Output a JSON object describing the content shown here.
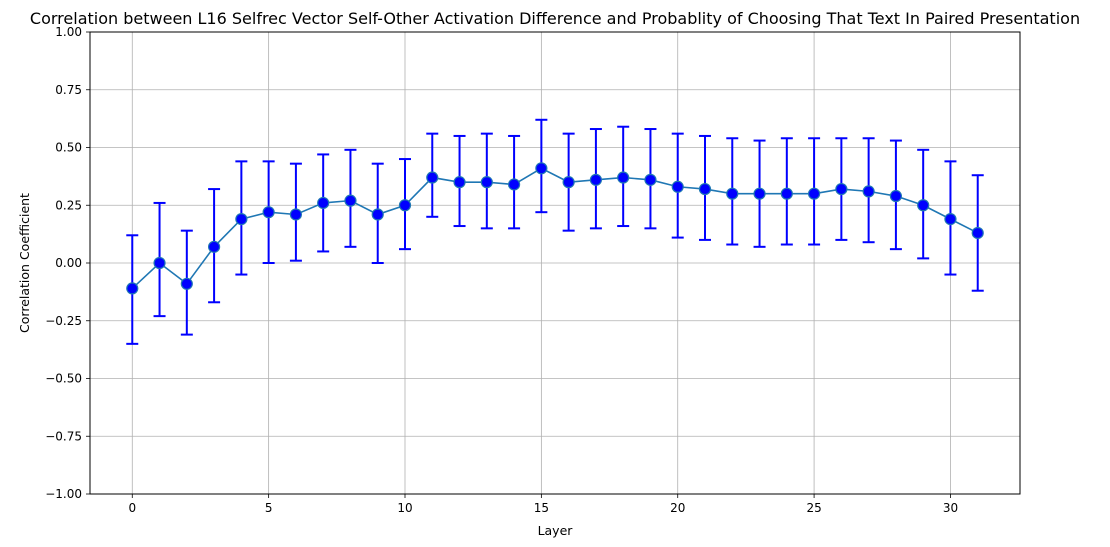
{
  "chart_data": {
    "type": "line",
    "title": "Correlation between L16 Selfrec Vector Self-Other Activation Difference and Probablity of Choosing That Text In Paired Presentation",
    "xlabel": "Layer",
    "ylabel": "Correlation Coefficient",
    "xlim": [
      -1.55,
      32.55
    ],
    "ylim": [
      -1.0,
      1.0
    ],
    "x_ticks": [
      0,
      5,
      10,
      15,
      20,
      25,
      30
    ],
    "y_ticks": [
      1.0,
      0.75,
      0.5,
      0.25,
      0.0,
      -0.25,
      -0.5,
      -0.75,
      -1.0
    ],
    "x_tick_labels": [
      "0",
      "5",
      "10",
      "15",
      "20",
      "25",
      "30"
    ],
    "y_tick_labels": [
      "1.00",
      "0.75",
      "0.50",
      "0.25",
      "0.00",
      "−0.25",
      "−0.50",
      "−0.75",
      "−1.00"
    ],
    "grid": true,
    "series": [
      {
        "x": [
          0,
          1,
          2,
          3,
          4,
          5,
          6,
          7,
          8,
          9,
          10,
          11,
          12,
          13,
          14,
          15,
          16,
          17,
          18,
          19,
          20,
          21,
          22,
          23,
          24,
          25,
          26,
          27,
          28,
          29,
          30,
          31
        ],
        "y": [
          -0.11,
          0.0,
          -0.09,
          0.07,
          0.19,
          0.22,
          0.21,
          0.26,
          0.27,
          0.21,
          0.25,
          0.37,
          0.35,
          0.35,
          0.34,
          0.41,
          0.35,
          0.36,
          0.37,
          0.36,
          0.33,
          0.32,
          0.3,
          0.3,
          0.3,
          0.3,
          0.32,
          0.31,
          0.29,
          0.25,
          0.19,
          0.13
        ],
        "y_lower": [
          -0.35,
          -0.23,
          -0.31,
          -0.17,
          -0.05,
          0.0,
          0.01,
          0.05,
          0.07,
          0.0,
          0.06,
          0.2,
          0.16,
          0.15,
          0.15,
          0.22,
          0.14,
          0.15,
          0.16,
          0.15,
          0.11,
          0.1,
          0.08,
          0.07,
          0.08,
          0.08,
          0.1,
          0.09,
          0.06,
          0.02,
          -0.05,
          -0.12
        ],
        "y_upper": [
          0.12,
          0.26,
          0.14,
          0.32,
          0.44,
          0.44,
          0.43,
          0.47,
          0.49,
          0.43,
          0.45,
          0.56,
          0.55,
          0.56,
          0.55,
          0.62,
          0.56,
          0.58,
          0.59,
          0.58,
          0.56,
          0.55,
          0.54,
          0.53,
          0.54,
          0.54,
          0.54,
          0.54,
          0.53,
          0.49,
          0.44,
          0.38
        ]
      }
    ],
    "colors": {
      "line": "#1f77b4",
      "marker_fill": "#0000ff",
      "marker_edge": "#1f77b4",
      "errorbar": "#0000ff",
      "grid": "#b0b0b0",
      "axes": "#000000"
    }
  }
}
